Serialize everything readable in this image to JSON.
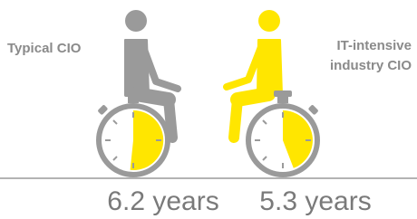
{
  "figures": [
    {
      "label": "Typical CIO",
      "value": "6.2 years"
    },
    {
      "label_lines": [
        "IT-intensive",
        "industry CIO"
      ],
      "value": "5.3 years"
    }
  ]
}
